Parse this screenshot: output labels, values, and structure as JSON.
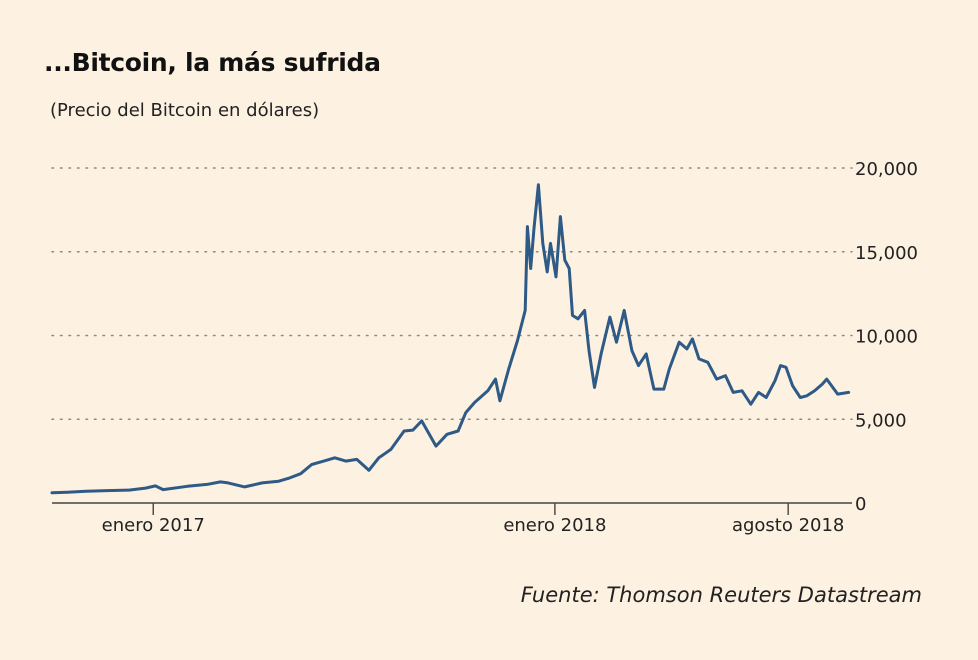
{
  "title": "...Bitcoin, la más sufrida",
  "subtitle": "(Precio del Bitcoin en dólares)",
  "source": "Fuente: Thomson Reuters Datastream",
  "colors": {
    "background": "#fdf1e1",
    "line": "#2e5a87",
    "grid": "#8a8a8a",
    "axis": "#444444"
  },
  "chart_data": {
    "type": "line",
    "title": "...Bitcoin, la más sufrida",
    "ylabel": "(Precio del Bitcoin en dólares)",
    "xlabel": "",
    "ylim": [
      0,
      20000
    ],
    "xlim": [
      "2016-10-01",
      "2018-09-28"
    ],
    "y_ticks": [
      0,
      5000,
      10000,
      15000,
      20000
    ],
    "y_tick_labels": [
      "0",
      "5,000",
      "10,000",
      "15,000",
      "20,000"
    ],
    "x_ticks": [
      "2017-01-01",
      "2018-01-01",
      "2018-08-01"
    ],
    "x_tick_labels": [
      "enero 2017",
      "enero 2018",
      "agosto 2018"
    ],
    "grid": "horizontal dotted",
    "series": [
      {
        "values": [
          [
            "2016-10-01",
            610
          ],
          [
            "2016-10-15",
            640
          ],
          [
            "2016-11-01",
            700
          ],
          [
            "2016-11-20",
            740
          ],
          [
            "2016-12-10",
            770
          ],
          [
            "2016-12-25",
            890
          ],
          [
            "2017-01-03",
            1020
          ],
          [
            "2017-01-10",
            800
          ],
          [
            "2017-02-01",
            1000
          ],
          [
            "2017-02-20",
            1120
          ],
          [
            "2017-03-03",
            1260
          ],
          [
            "2017-03-10",
            1200
          ],
          [
            "2017-03-25",
            960
          ],
          [
            "2017-04-10",
            1200
          ],
          [
            "2017-04-25",
            1300
          ],
          [
            "2017-05-05",
            1500
          ],
          [
            "2017-05-15",
            1750
          ],
          [
            "2017-05-25",
            2300
          ],
          [
            "2017-06-05",
            2500
          ],
          [
            "2017-06-15",
            2700
          ],
          [
            "2017-06-25",
            2500
          ],
          [
            "2017-07-05",
            2600
          ],
          [
            "2017-07-16",
            1950
          ],
          [
            "2017-07-25",
            2700
          ],
          [
            "2017-08-05",
            3200
          ],
          [
            "2017-08-17",
            4300
          ],
          [
            "2017-08-25",
            4350
          ],
          [
            "2017-09-02",
            4900
          ],
          [
            "2017-09-15",
            3400
          ],
          [
            "2017-09-25",
            4100
          ],
          [
            "2017-10-05",
            4300
          ],
          [
            "2017-10-12",
            5400
          ],
          [
            "2017-10-20",
            6000
          ],
          [
            "2017-11-01",
            6700
          ],
          [
            "2017-11-08",
            7400
          ],
          [
            "2017-11-12",
            6100
          ],
          [
            "2017-11-20",
            8000
          ],
          [
            "2017-11-28",
            9700
          ],
          [
            "2017-12-05",
            11500
          ],
          [
            "2017-12-07",
            16500
          ],
          [
            "2017-12-10",
            14000
          ],
          [
            "2017-12-13",
            16400
          ],
          [
            "2017-12-17",
            19000
          ],
          [
            "2017-12-21",
            15500
          ],
          [
            "2017-12-25",
            13800
          ],
          [
            "2017-12-28",
            15500
          ],
          [
            "2018-01-02",
            13500
          ],
          [
            "2018-01-06",
            17100
          ],
          [
            "2018-01-10",
            14500
          ],
          [
            "2018-01-14",
            14000
          ],
          [
            "2018-01-17",
            11200
          ],
          [
            "2018-01-22",
            11000
          ],
          [
            "2018-01-28",
            11500
          ],
          [
            "2018-02-01",
            9100
          ],
          [
            "2018-02-06",
            6900
          ],
          [
            "2018-02-12",
            8900
          ],
          [
            "2018-02-20",
            11100
          ],
          [
            "2018-02-26",
            9600
          ],
          [
            "2018-03-05",
            11500
          ],
          [
            "2018-03-12",
            9100
          ],
          [
            "2018-03-18",
            8200
          ],
          [
            "2018-03-25",
            8900
          ],
          [
            "2018-04-01",
            6800
          ],
          [
            "2018-04-10",
            6800
          ],
          [
            "2018-04-15",
            8000
          ],
          [
            "2018-04-24",
            9600
          ],
          [
            "2018-05-01",
            9200
          ],
          [
            "2018-05-06",
            9800
          ],
          [
            "2018-05-12",
            8600
          ],
          [
            "2018-05-20",
            8400
          ],
          [
            "2018-05-28",
            7400
          ],
          [
            "2018-06-05",
            7600
          ],
          [
            "2018-06-12",
            6600
          ],
          [
            "2018-06-20",
            6700
          ],
          [
            "2018-06-28",
            5900
          ],
          [
            "2018-07-05",
            6600
          ],
          [
            "2018-07-12",
            6300
          ],
          [
            "2018-07-20",
            7300
          ],
          [
            "2018-07-25",
            8200
          ],
          [
            "2018-07-30",
            8100
          ],
          [
            "2018-08-05",
            7000
          ],
          [
            "2018-08-12",
            6300
          ],
          [
            "2018-08-18",
            6400
          ],
          [
            "2018-08-25",
            6700
          ],
          [
            "2018-09-01",
            7100
          ],
          [
            "2018-09-05",
            7400
          ],
          [
            "2018-09-15",
            6500
          ],
          [
            "2018-09-25",
            6600
          ]
        ]
      }
    ]
  }
}
